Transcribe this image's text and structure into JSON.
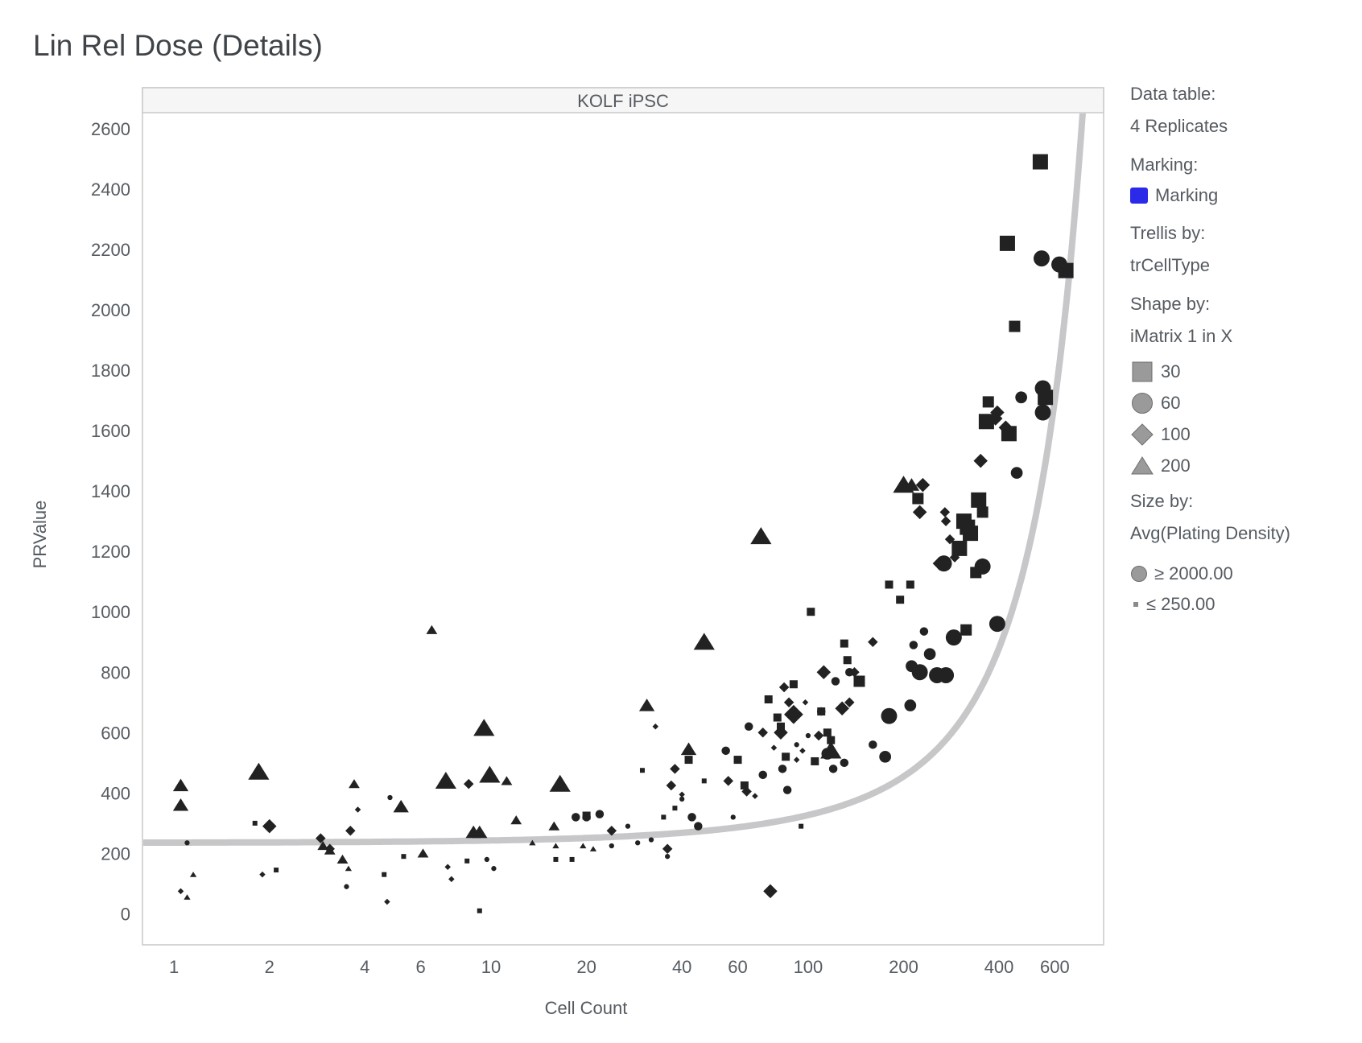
{
  "chart_data": {
    "type": "scatter",
    "title": "Lin Rel Dose (Details)",
    "panel_title": "KOLF iPSC",
    "xlabel": "Cell Count",
    "ylabel": "PRValue",
    "x_scale": "log",
    "xlim": [
      0.8,
      850
    ],
    "ylim": [
      -100,
      2650
    ],
    "x_ticks": [
      1,
      2,
      4,
      6,
      10,
      20,
      40,
      60,
      100,
      200,
      400,
      600
    ],
    "x_tick_labels": [
      "1",
      "2",
      "4",
      "6",
      "10",
      "20",
      "40",
      "60",
      "100",
      "200",
      "400",
      "600"
    ],
    "y_ticks": [
      0,
      200,
      400,
      600,
      800,
      1000,
      1200,
      1400,
      1600,
      1800,
      2000,
      2200,
      2400,
      2600
    ],
    "y_tick_labels": [
      "0",
      "200",
      "400",
      "600",
      "800",
      "1000",
      "1200",
      "1400",
      "1600",
      "1800",
      "2000",
      "2200",
      "2400",
      "2600"
    ],
    "grid": false,
    "legend_position": "right",
    "fit_curve": {
      "type": "exponential",
      "y_intercept": 235,
      "rate_per_unit_x": 0.0033,
      "color": "#c7c7ca"
    },
    "marker_color": "#222222",
    "series": [
      {
        "name": "30",
        "shape": "square",
        "points": [
          [
            1.8,
            300,
            1
          ],
          [
            2.1,
            145,
            1
          ],
          [
            4.6,
            130,
            1
          ],
          [
            5.3,
            190,
            1
          ],
          [
            8.4,
            175,
            1
          ],
          [
            9.2,
            10,
            1
          ],
          [
            16,
            180,
            1
          ],
          [
            18,
            180,
            1
          ],
          [
            20,
            325,
            2
          ],
          [
            30,
            475,
            1
          ],
          [
            35,
            320,
            1
          ],
          [
            38,
            350,
            1
          ],
          [
            42,
            510,
            2
          ],
          [
            47,
            440,
            1
          ],
          [
            60,
            510,
            2
          ],
          [
            63,
            425,
            2
          ],
          [
            75,
            710,
            2
          ],
          [
            80,
            650,
            2
          ],
          [
            82,
            620,
            2
          ],
          [
            85,
            520,
            2
          ],
          [
            90,
            760,
            2
          ],
          [
            95,
            290,
            1
          ],
          [
            102,
            1000,
            2
          ],
          [
            105,
            505,
            2
          ],
          [
            110,
            670,
            2
          ],
          [
            115,
            600,
            2
          ],
          [
            118,
            575,
            2
          ],
          [
            130,
            895,
            2
          ],
          [
            133,
            840,
            2
          ],
          [
            145,
            770,
            3
          ],
          [
            180,
            1090,
            2
          ],
          [
            195,
            1040,
            2
          ],
          [
            210,
            1090,
            2
          ],
          [
            222,
            1375,
            3
          ],
          [
            300,
            1210,
            4
          ],
          [
            315,
            940,
            3
          ],
          [
            310,
            1300,
            4
          ],
          [
            318,
            1280,
            4
          ],
          [
            325,
            1260,
            4
          ],
          [
            338,
            1130,
            3
          ],
          [
            345,
            1370,
            4
          ],
          [
            355,
            1330,
            3
          ],
          [
            365,
            1630,
            4
          ],
          [
            370,
            1695,
            3
          ],
          [
            425,
            2220,
            4
          ],
          [
            430,
            1590,
            4
          ],
          [
            448,
            1945,
            3
          ],
          [
            540,
            2490,
            4
          ],
          [
            560,
            1710,
            4
          ],
          [
            650,
            2130,
            4
          ]
        ]
      },
      {
        "name": "60",
        "shape": "circle",
        "points": [
          [
            1.1,
            235,
            1
          ],
          [
            3.5,
            90,
            1
          ],
          [
            4.8,
            385,
            1
          ],
          [
            9.7,
            180,
            1
          ],
          [
            10.2,
            150,
            1
          ],
          [
            18.5,
            320,
            2
          ],
          [
            20,
            320,
            2
          ],
          [
            22,
            330,
            2
          ],
          [
            24,
            225,
            1
          ],
          [
            27,
            290,
            1
          ],
          [
            29,
            235,
            1
          ],
          [
            32,
            245,
            1
          ],
          [
            36,
            190,
            1
          ],
          [
            40,
            380,
            1
          ],
          [
            43,
            320,
            2
          ],
          [
            45,
            290,
            2
          ],
          [
            55,
            540,
            2
          ],
          [
            58,
            320,
            1
          ],
          [
            65,
            620,
            2
          ],
          [
            72,
            460,
            2
          ],
          [
            83,
            480,
            2
          ],
          [
            86,
            410,
            2
          ],
          [
            92,
            560,
            1
          ],
          [
            100,
            590,
            1
          ],
          [
            110,
            670,
            2
          ],
          [
            115,
            530,
            3
          ],
          [
            120,
            480,
            2
          ],
          [
            122,
            770,
            2
          ],
          [
            130,
            500,
            2
          ],
          [
            135,
            800,
            2
          ],
          [
            160,
            560,
            2
          ],
          [
            175,
            520,
            3
          ],
          [
            180,
            655,
            4
          ],
          [
            210,
            690,
            3
          ],
          [
            212,
            820,
            3
          ],
          [
            215,
            890,
            2
          ],
          [
            225,
            800,
            4
          ],
          [
            232,
            935,
            2
          ],
          [
            242,
            860,
            3
          ],
          [
            255,
            790,
            4
          ],
          [
            268,
            1160,
            4
          ],
          [
            272,
            790,
            4
          ],
          [
            288,
            915,
            4
          ],
          [
            355,
            1150,
            4
          ],
          [
            395,
            960,
            4
          ],
          [
            455,
            1460,
            3
          ],
          [
            470,
            1710,
            3
          ],
          [
            545,
            2170,
            4
          ],
          [
            550,
            1660,
            4
          ],
          [
            550,
            1740,
            4
          ],
          [
            620,
            2150,
            4
          ]
        ]
      },
      {
        "name": "100",
        "shape": "diamond",
        "points": [
          [
            1.05,
            75,
            1
          ],
          [
            1.9,
            130,
            1
          ],
          [
            2,
            290,
            3
          ],
          [
            2.9,
            250,
            2
          ],
          [
            3.1,
            215,
            2
          ],
          [
            3.6,
            275,
            2
          ],
          [
            3.8,
            345,
            1
          ],
          [
            4.7,
            40,
            1
          ],
          [
            7.3,
            155,
            1
          ],
          [
            7.5,
            115,
            1
          ],
          [
            8.5,
            430,
            2
          ],
          [
            24,
            275,
            2
          ],
          [
            33,
            620,
            1
          ],
          [
            36,
            215,
            2
          ],
          [
            37,
            425,
            2
          ],
          [
            38,
            480,
            2
          ],
          [
            40,
            395,
            1
          ],
          [
            56,
            440,
            2
          ],
          [
            64,
            405,
            2
          ],
          [
            68,
            390,
            1
          ],
          [
            72,
            600,
            2
          ],
          [
            76,
            75,
            3
          ],
          [
            78,
            550,
            1
          ],
          [
            82,
            600,
            3
          ],
          [
            84,
            750,
            2
          ],
          [
            87,
            700,
            2
          ],
          [
            90,
            660,
            4
          ],
          [
            92,
            510,
            1
          ],
          [
            96,
            540,
            1
          ],
          [
            98,
            700,
            1
          ],
          [
            108,
            590,
            2
          ],
          [
            112,
            800,
            3
          ],
          [
            128,
            680,
            3
          ],
          [
            135,
            700,
            2
          ],
          [
            140,
            800,
            2
          ],
          [
            160,
            900,
            2
          ],
          [
            225,
            1330,
            3
          ],
          [
            230,
            1420,
            3
          ],
          [
            260,
            1160,
            3
          ],
          [
            270,
            1330,
            2
          ],
          [
            272,
            1300,
            2
          ],
          [
            280,
            1240,
            2
          ],
          [
            290,
            1180,
            2
          ],
          [
            350,
            1500,
            3
          ],
          [
            390,
            1640,
            3
          ],
          [
            395,
            1660,
            3
          ],
          [
            420,
            1610,
            3
          ]
        ]
      },
      {
        "name": "200",
        "shape": "triangle",
        "points": [
          [
            1.05,
            425,
            3
          ],
          [
            1.05,
            360,
            3
          ],
          [
            1.1,
            55,
            1
          ],
          [
            1.15,
            130,
            1
          ],
          [
            1.85,
            470,
            4
          ],
          [
            2.95,
            225,
            2
          ],
          [
            3.1,
            210,
            2
          ],
          [
            3.4,
            180,
            2
          ],
          [
            3.55,
            150,
            1
          ],
          [
            3.7,
            430,
            2
          ],
          [
            5.2,
            355,
            3
          ],
          [
            6.1,
            200,
            2
          ],
          [
            6.5,
            940,
            2
          ],
          [
            7.2,
            440,
            4
          ],
          [
            8.8,
            270,
            3
          ],
          [
            9.2,
            270,
            3
          ],
          [
            9.5,
            615,
            4
          ],
          [
            9.9,
            460,
            4
          ],
          [
            11.2,
            440,
            2
          ],
          [
            12,
            310,
            2
          ],
          [
            13.5,
            235,
            1
          ],
          [
            15.8,
            290,
            2
          ],
          [
            16,
            225,
            1
          ],
          [
            16.5,
            430,
            4
          ],
          [
            19.5,
            225,
            1
          ],
          [
            21,
            215,
            1
          ],
          [
            31,
            690,
            3
          ],
          [
            42,
            545,
            3
          ],
          [
            47,
            900,
            4
          ],
          [
            71,
            1250,
            4
          ],
          [
            118,
            540,
            4
          ],
          [
            200,
            1420,
            4
          ],
          [
            212,
            1420,
            3
          ]
        ]
      }
    ]
  },
  "legend": {
    "data_table_label": "Data table:",
    "data_table_value": "4 Replicates",
    "marking_label": "Marking:",
    "marking_value": "Marking",
    "marking_color": "#2a2ae8",
    "trellis_label": "Trellis by:",
    "trellis_value": "trCellType",
    "shape_label": "Shape by:",
    "shape_value": "iMatrix 1 in X",
    "size_label": "Size by:",
    "size_value": "Avg(Plating Density)",
    "size_max_label": "≥ 2000.00",
    "size_min_label": "≤ 250.00",
    "swatch_color": "#9a9a9a"
  }
}
